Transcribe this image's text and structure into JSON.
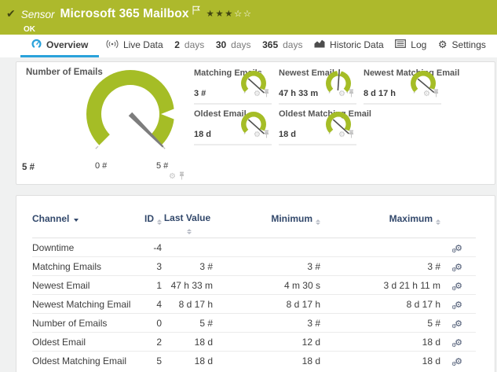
{
  "colors": {
    "header_green": "#adb92c",
    "gauge_green": "#a5bd26",
    "accent_blue": "#2aa2db",
    "table_header_navy": "#32486b"
  },
  "header": {
    "kind": "Sensor",
    "title": "Microsoft 365 Mailbox",
    "status": "OK",
    "stars_filled": "★★★",
    "stars_empty": "☆☆"
  },
  "tabs": {
    "overview": "Overview",
    "live_data": "Live Data",
    "d2_num": "2",
    "d2_word": "days",
    "d30_num": "30",
    "d30_word": "days",
    "d365_num": "365",
    "d365_word": "days",
    "historic": "Historic Data",
    "log": "Log",
    "settings": "Settings"
  },
  "gauges": {
    "main": {
      "title": "Number of Emails",
      "value": "5 #",
      "min_label": "0 #",
      "max_label": "5 #",
      "needle_angle": 45
    },
    "small": [
      {
        "title": "Matching Emails",
        "value": "3 #",
        "needle_angle": 42
      },
      {
        "title": "Newest Email",
        "value": "47 h 33 m",
        "needle_angle": -86
      },
      {
        "title": "Newest Matching Email",
        "value": "8 d 17 h",
        "needle_angle": 40
      },
      {
        "title": "Oldest Email",
        "value": "18 d",
        "needle_angle": 42
      },
      {
        "title": "Oldest Matching Email",
        "value": "18 d",
        "needle_angle": 42
      }
    ]
  },
  "table": {
    "headers": {
      "channel": "Channel",
      "id": "ID",
      "last": "Last Value",
      "min": "Minimum",
      "max": "Maximum"
    },
    "rows": [
      {
        "channel": "Downtime",
        "id": "-4",
        "last": "",
        "min": "",
        "max": ""
      },
      {
        "channel": "Matching Emails",
        "id": "3",
        "last": "3 #",
        "min": "3 #",
        "max": "3 #"
      },
      {
        "channel": "Newest Email",
        "id": "1",
        "last": "47 h 33 m",
        "min": "4 m 30 s",
        "max": "3 d 21 h 11 m"
      },
      {
        "channel": "Newest Matching Email",
        "id": "4",
        "last": "8 d 17 h",
        "min": "8 d 17 h",
        "max": "8 d 17 h"
      },
      {
        "channel": "Number of Emails",
        "id": "0",
        "last": "5 #",
        "min": "3 #",
        "max": "5 #"
      },
      {
        "channel": "Oldest Email",
        "id": "2",
        "last": "18 d",
        "min": "12 d",
        "max": "18 d"
      },
      {
        "channel": "Oldest Matching Email",
        "id": "5",
        "last": "18 d",
        "min": "18 d",
        "max": "18 d"
      }
    ]
  }
}
